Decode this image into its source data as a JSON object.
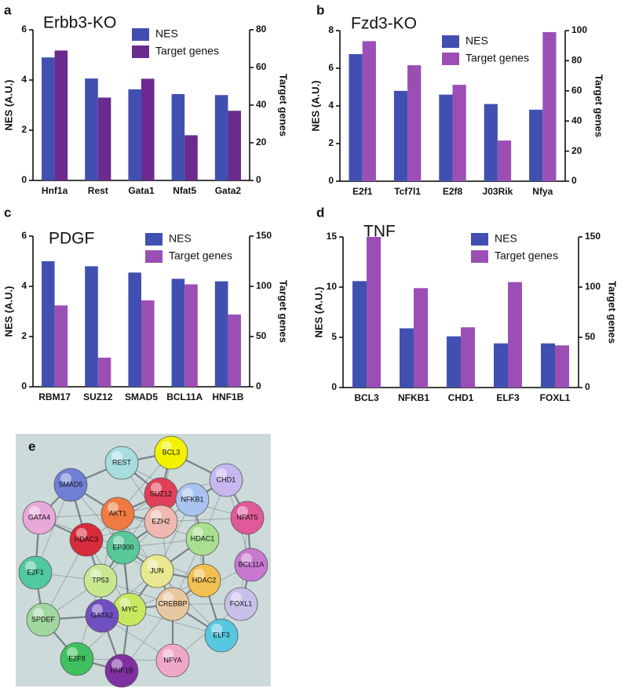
{
  "chart_data": [
    {
      "type": "bar",
      "panel": "a",
      "title": "Erbb3-KO",
      "categories": [
        "Hnf1a",
        "Rest",
        "Gata1",
        "Nfat5",
        "Gata2"
      ],
      "series": [
        {
          "name": "NES",
          "color": "#4150b0",
          "values": [
            4.9,
            4.06,
            3.63,
            3.44,
            3.4
          ]
        },
        {
          "name": "Target genes",
          "color": "#6a2a8e",
          "axis": "y2",
          "values": [
            69,
            44,
            54,
            24,
            37
          ]
        }
      ],
      "ylabel": "NES (A.U.)",
      "y2label": "Target genes",
      "ylim": [
        0,
        6
      ],
      "yticks": [
        0,
        2,
        4,
        6
      ],
      "y2lim": [
        0,
        80
      ],
      "y2ticks": [
        0,
        20,
        40,
        60,
        80
      ]
    },
    {
      "type": "bar",
      "panel": "b",
      "title": "Fzd3-KO",
      "categories": [
        "E2f1",
        "Tcf7l1",
        "E2f8",
        "J03Rik",
        "Nfya"
      ],
      "series": [
        {
          "name": "NES",
          "color": "#4150b0",
          "values": [
            6.75,
            4.8,
            4.6,
            4.1,
            3.8
          ]
        },
        {
          "name": "Target genes",
          "color": "#9b4fb5",
          "axis": "y2",
          "values": [
            93,
            77,
            64,
            27,
            99
          ]
        }
      ],
      "ylabel": "NES (A.U.)",
      "y2label": "Target genes",
      "ylim": [
        0,
        8
      ],
      "yticks": [
        0,
        2,
        4,
        6,
        8
      ],
      "y2lim": [
        0,
        100
      ],
      "y2ticks": [
        0,
        20,
        40,
        60,
        80,
        100
      ]
    },
    {
      "type": "bar",
      "panel": "c",
      "title": "PDGF",
      "categories": [
        "RBM17",
        "SUZ12",
        "SMAD5",
        "BCL11A",
        "HNF1B"
      ],
      "series": [
        {
          "name": "NES",
          "color": "#4150b0",
          "values": [
            5.0,
            4.8,
            4.55,
            4.3,
            4.2
          ]
        },
        {
          "name": "Target genes",
          "color": "#9b4fb5",
          "axis": "y2",
          "values": [
            81,
            29,
            86,
            102,
            72
          ]
        }
      ],
      "ylabel": "NES (A.U.)",
      "y2label": "Target genes",
      "ylim": [
        0,
        6
      ],
      "yticks": [
        0,
        2,
        4,
        6
      ],
      "y2lim": [
        0,
        150
      ],
      "y2ticks": [
        0,
        50,
        100,
        150
      ]
    },
    {
      "type": "bar",
      "panel": "d",
      "title": "TNF",
      "categories": [
        "BCL3",
        "NFKB1",
        "CHD1",
        "ELF3",
        "FOXL1"
      ],
      "series": [
        {
          "name": "NES",
          "color": "#4150b0",
          "values": [
            10.6,
            5.9,
            5.1,
            4.4,
            4.4
          ]
        },
        {
          "name": "Target genes",
          "color": "#9b4fb5",
          "axis": "y2",
          "values": [
            150,
            99,
            60,
            105,
            42
          ]
        }
      ],
      "ylabel": "NES (A.U.)",
      "y2label": "Target genes",
      "ylim": [
        0,
        15
      ],
      "yticks": [
        0,
        5,
        10,
        15
      ],
      "y2lim": [
        0,
        150
      ],
      "y2ticks": [
        0,
        50,
        100,
        150
      ]
    }
  ],
  "network": {
    "panel": "e",
    "nodes": [
      {
        "label": "REST",
        "color": "#a8dde0"
      },
      {
        "label": "BCL3",
        "color": "#f2f200"
      },
      {
        "label": "SMAD5",
        "color": "#6f7fd6"
      },
      {
        "label": "CHD1",
        "color": "#c6b7f0"
      },
      {
        "label": "SUZ12",
        "color": "#e0405a"
      },
      {
        "label": "NFKB1",
        "color": "#a8c3f0"
      },
      {
        "label": "AKT1",
        "color": "#f07a40"
      },
      {
        "label": "NFAT5",
        "color": "#e05a9a"
      },
      {
        "label": "GATA4",
        "color": "#e8a8d8"
      },
      {
        "label": "HDAC3",
        "color": "#d82b3b"
      },
      {
        "label": "EZH2",
        "color": "#f0b8b0"
      },
      {
        "label": "HDAC1",
        "color": "#a8e090"
      },
      {
        "label": "EP300",
        "color": "#58c898"
      },
      {
        "label": "BCL11A",
        "color": "#c878d0"
      },
      {
        "label": "JUN",
        "color": "#e8e890"
      },
      {
        "label": "E2F1",
        "color": "#50c8a0"
      },
      {
        "label": "TP53",
        "color": "#c8e890"
      },
      {
        "label": "HDAC2",
        "color": "#f0c050"
      },
      {
        "label": "CREBBP",
        "color": "#e8c8a0"
      },
      {
        "label": "FOXL1",
        "color": "#c8c0e8"
      },
      {
        "label": "MYC",
        "color": "#c8e860"
      },
      {
        "label": "GATA2",
        "color": "#7050c0"
      },
      {
        "label": "SPDEF",
        "color": "#a0d8a0"
      },
      {
        "label": "ELF3",
        "color": "#58c8e0"
      },
      {
        "label": "E2F8",
        "color": "#40c060"
      },
      {
        "label": "NFYA",
        "color": "#f0a8c8"
      },
      {
        "label": "HNF1B",
        "color": "#8030a0"
      }
    ]
  }
}
